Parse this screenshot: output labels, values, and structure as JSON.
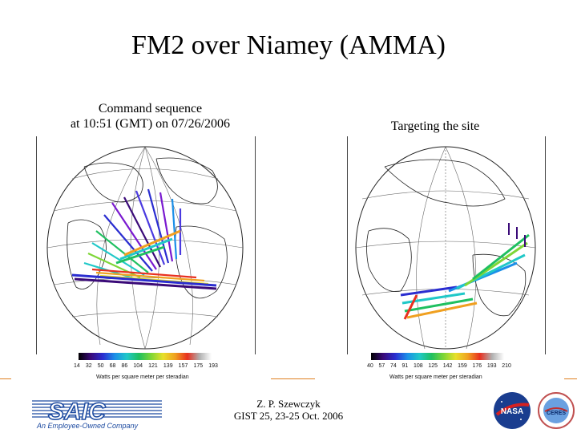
{
  "title": "FM2 over Niamey (AMMA)",
  "left_panel": {
    "caption_line1": "Command sequence",
    "caption_line2": "at 10:51 (GMT) on 07/26/2006",
    "colorbar_ticks": [
      "14",
      "32",
      "50",
      "68",
      "86",
      "104",
      "121",
      "139",
      "157",
      "175",
      "193"
    ],
    "colorbar_units": "Watts per square meter per steradian"
  },
  "right_panel": {
    "caption": "Targeting the site",
    "colorbar_ticks": [
      "40",
      "57",
      "74",
      "91",
      "108",
      "125",
      "142",
      "159",
      "176",
      "193",
      "210"
    ],
    "colorbar_units": "Watts per square meter per steradian"
  },
  "footer": {
    "author_line1": "Z. P. Szewczyk",
    "author_line2": "GIST 25, 23-25 Oct. 2006",
    "saic_logo_text": "SAIC",
    "saic_tagline": "An Employee-Owned Company",
    "nasa_logo_text": "NASA",
    "ceres_logo_text": "CERES"
  },
  "colors": {
    "accent_orange": "#e08020",
    "saic_blue": "#1c4aa0",
    "nasa_blue": "#1a3d8f",
    "nasa_red": "#d62020"
  }
}
